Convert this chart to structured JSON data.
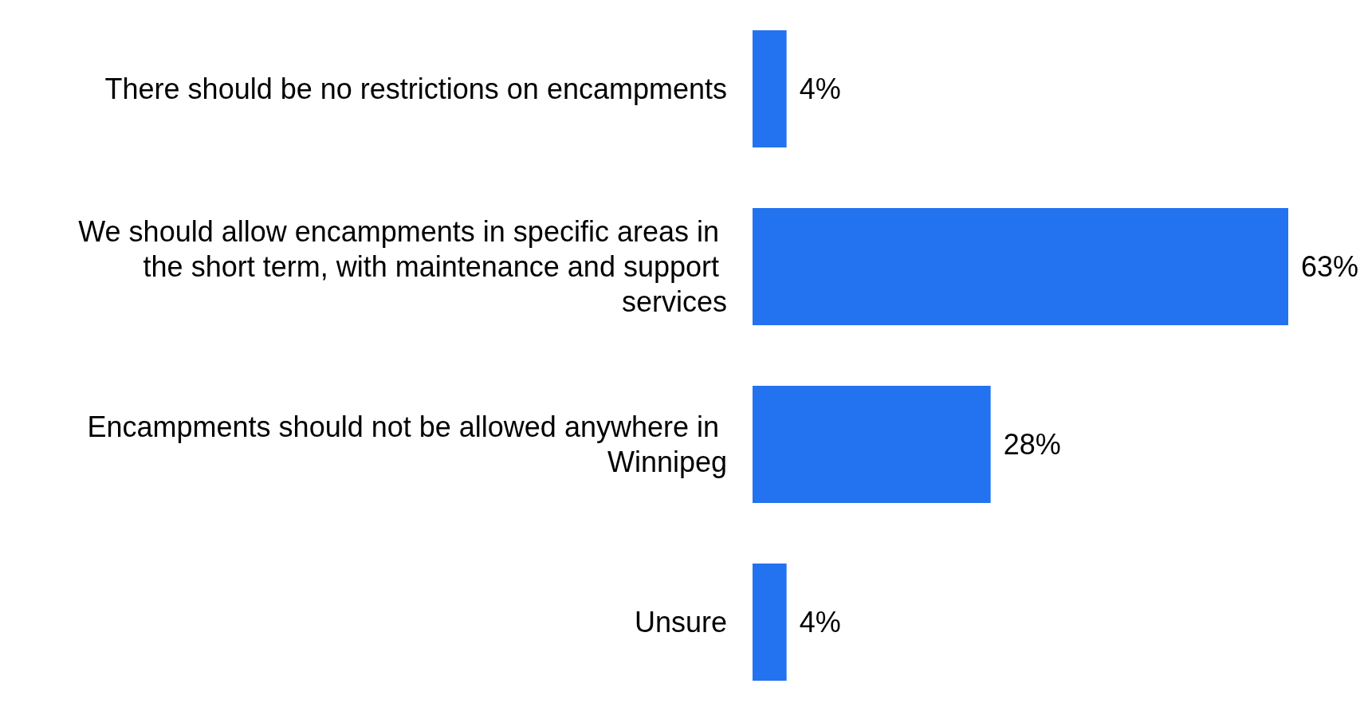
{
  "chart_data": {
    "type": "bar",
    "orientation": "horizontal",
    "categories": [
      "There should be no restrictions on encampments",
      "We should allow encampments in specific areas in the short term, with maintenance and support services",
      "Encampments should not be allowed anywhere in Winnipeg",
      "Unsure"
    ],
    "values": [
      4,
      63,
      28,
      4
    ],
    "value_labels": [
      "4%",
      "63%",
      "28%",
      "4%"
    ],
    "color": "#2372ef"
  }
}
